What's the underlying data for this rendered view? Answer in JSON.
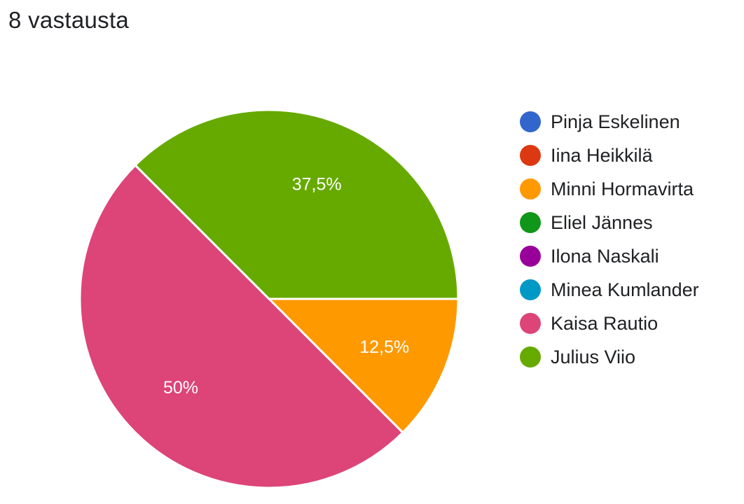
{
  "header": {
    "response_count": "8 vastausta"
  },
  "chart_data": {
    "type": "pie",
    "categories": [
      "Pinja Eskelinen",
      "Iina Heikkilä",
      "Minni Hormavirta",
      "Eliel Jännes",
      "Ilona Naskali",
      "Minea Kumlander",
      "Kaisa Rautio",
      "Julius Viio"
    ],
    "values": [
      0,
      0,
      1,
      0,
      0,
      0,
      4,
      3
    ],
    "percent_labels": [
      "",
      "",
      "12,5%",
      "",
      "",
      "",
      "50%",
      "37,5%"
    ],
    "colors": [
      "#3366cc",
      "#dc3912",
      "#ff9900",
      "#109618",
      "#990099",
      "#0099c6",
      "#dd4477",
      "#66aa00"
    ],
    "legend_position": "right"
  }
}
